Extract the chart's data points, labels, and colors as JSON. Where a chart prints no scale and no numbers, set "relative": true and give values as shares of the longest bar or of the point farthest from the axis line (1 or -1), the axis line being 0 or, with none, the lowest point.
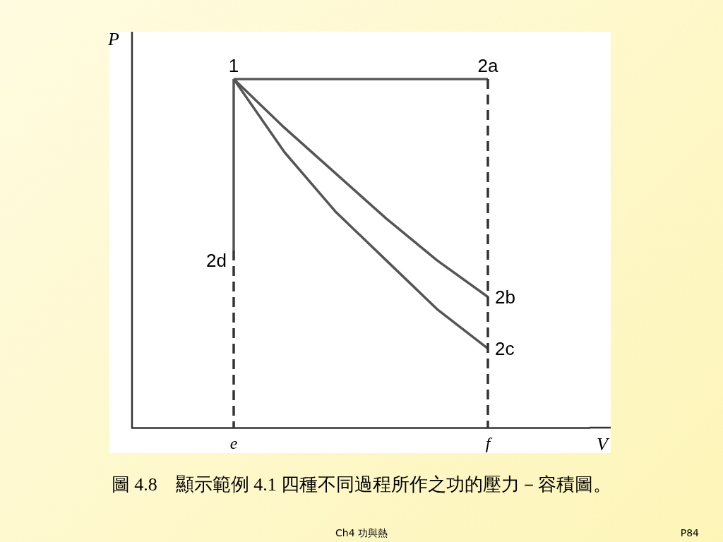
{
  "chart_data": {
    "type": "line",
    "relative": true,
    "title": "圖 4.8　顯示範例 4.1 四種不同過程所作之功的壓力－容積圖。",
    "xlabel": "V",
    "ylabel": "P",
    "categories": [
      null,
      null,
      "e",
      null,
      null,
      null,
      null,
      "f",
      null,
      null
    ],
    "tick_labels": "x",
    "marker": "none",
    "series": [
      {
        "color": "#555555",
        "values": [
          null,
          null,
          1,
          null,
          null,
          null,
          null,
          1,
          null,
          null
        ]
      },
      {
        "color": "#555555",
        "values": [
          null,
          null,
          1,
          0.86,
          0.73,
          0.6,
          0.48,
          0.375,
          null,
          null
        ]
      },
      {
        "color": "#555555",
        "values": [
          null,
          null,
          1,
          0.79,
          0.62,
          0.48,
          0.34,
          0.227,
          null,
          null
        ]
      },
      {
        "color": "#555555",
        "x": [
          "e",
          "e"
        ],
        "values": [
          1,
          0.508
        ]
      },
      {
        "color": "#333333",
        "line_style": "dashed",
        "x": [
          "e",
          "e"
        ],
        "values": [
          0.508,
          0
        ]
      },
      {
        "color": "#333333",
        "line_style": "dashed",
        "x": [
          "f",
          "f"
        ],
        "values": [
          1,
          0
        ]
      }
    ],
    "annotations": [
      {
        "text": "1",
        "x": "e",
        "y": 1
      },
      {
        "text": "2a",
        "x": "f",
        "y": 1
      },
      {
        "text": "2b",
        "x": "f",
        "y": 0.375
      },
      {
        "text": "2c",
        "x": "f",
        "y": 0.227
      },
      {
        "text": "2d",
        "x": "e",
        "y": 0.508
      },
      "Ch4 功與熱",
      "P84"
    ]
  }
}
